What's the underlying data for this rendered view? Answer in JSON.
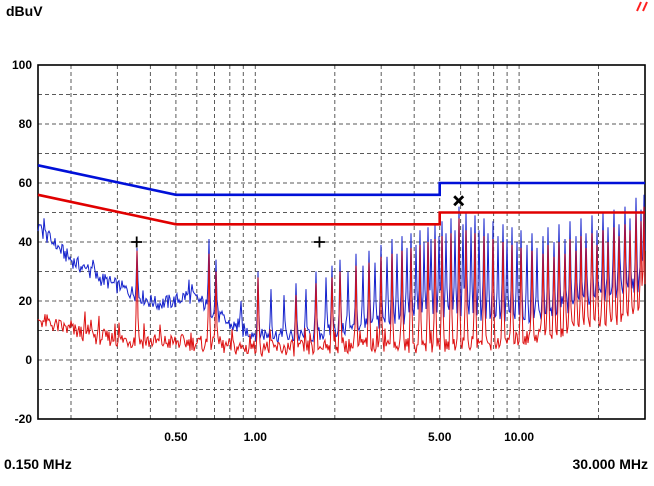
{
  "header": {
    "y_unit": "dBuV"
  },
  "footer": {
    "x_start": "0.150 MHz",
    "x_end": "30.000 MHz"
  },
  "decoration": {
    "logo_color": "#ff2020"
  },
  "chart_data": {
    "type": "line",
    "title": "",
    "xlabel": "MHz",
    "ylabel": "dBuV",
    "x_scale": "log",
    "x_range_mhz": [
      0.15,
      30
    ],
    "ylim": [
      -20,
      100
    ],
    "y_ticks": [
      100,
      80,
      60,
      40,
      20,
      0,
      -20
    ],
    "y_grid_step": 10,
    "grid_style": "dashed",
    "x_tick_labels": [
      {
        "value": 0.5,
        "label": "0.50"
      },
      {
        "value": 1.0,
        "label": "1.00"
      },
      {
        "value": 5.0,
        "label": "5.00"
      },
      {
        "value": 10.0,
        "label": "10.00"
      }
    ],
    "x_minor_grid": [
      0.2,
      0.3,
      0.4,
      0.5,
      0.6,
      0.7,
      0.8,
      0.9,
      1,
      2,
      3,
      4,
      5,
      6,
      7,
      8,
      9,
      10,
      20
    ],
    "limit_lines": [
      {
        "name": "quasi-peak-limit-line",
        "color": "#0010d8",
        "width": 2.6,
        "points": [
          [
            0.15,
            66
          ],
          [
            0.5,
            56
          ],
          [
            5,
            56
          ],
          [
            5,
            60
          ],
          [
            30,
            60
          ]
        ]
      },
      {
        "name": "average-limit-line",
        "color": "#e00000",
        "width": 2.6,
        "points": [
          [
            0.15,
            56
          ],
          [
            0.5,
            46
          ],
          [
            5,
            46
          ],
          [
            5,
            50
          ],
          [
            30,
            50
          ]
        ]
      }
    ],
    "markers": [
      {
        "symbol": "plus",
        "f_mhz": 0.355,
        "level_db": 40
      },
      {
        "symbol": "plus",
        "f_mhz": 1.75,
        "level_db": 40
      },
      {
        "symbol": "x",
        "f_mhz": 5.9,
        "level_db": 54
      }
    ],
    "traces": [
      {
        "name": "peak",
        "color": "#1522cc",
        "seed": 1,
        "noise_db": 2.6,
        "envelope": [
          [
            0.15,
            45
          ],
          [
            0.17,
            40
          ],
          [
            0.2,
            34
          ],
          [
            0.24,
            29
          ],
          [
            0.3,
            25
          ],
          [
            0.36,
            22
          ],
          [
            0.42,
            19
          ],
          [
            0.5,
            20
          ],
          [
            0.55,
            22
          ],
          [
            0.62,
            20
          ],
          [
            0.7,
            16
          ],
          [
            0.8,
            12
          ],
          [
            0.9,
            10
          ],
          [
            1.0,
            9
          ],
          [
            1.3,
            8
          ],
          [
            1.6,
            8
          ],
          [
            2.0,
            10
          ],
          [
            2.5,
            11
          ],
          [
            3.0,
            13
          ],
          [
            3.5,
            14
          ],
          [
            4.0,
            15
          ],
          [
            5.0,
            16
          ],
          [
            6.0,
            17
          ],
          [
            7.0,
            16
          ],
          [
            8.0,
            15
          ],
          [
            10,
            14
          ],
          [
            12,
            15
          ],
          [
            15,
            18
          ],
          [
            19,
            21
          ],
          [
            24,
            24
          ],
          [
            30,
            26
          ]
        ],
        "spikes": [
          [
            0.355,
            38
          ],
          [
            0.67,
            41
          ],
          [
            0.71,
            34
          ],
          [
            0.88,
            20
          ],
          [
            1.02,
            30
          ],
          [
            1.15,
            24
          ],
          [
            1.28,
            22
          ],
          [
            1.42,
            26
          ],
          [
            1.55,
            24
          ],
          [
            1.7,
            30
          ],
          [
            1.85,
            28
          ],
          [
            1.95,
            32
          ],
          [
            2.1,
            34
          ],
          [
            2.25,
            30
          ],
          [
            2.4,
            36
          ],
          [
            2.55,
            32
          ],
          [
            2.7,
            37
          ],
          [
            2.85,
            33
          ],
          [
            3.0,
            39
          ],
          [
            3.15,
            35
          ],
          [
            3.3,
            41
          ],
          [
            3.45,
            36
          ],
          [
            3.6,
            42
          ],
          [
            3.75,
            38
          ],
          [
            3.9,
            43
          ],
          [
            4.05,
            39
          ],
          [
            4.2,
            44
          ],
          [
            4.35,
            40
          ],
          [
            4.5,
            45
          ],
          [
            4.65,
            41
          ],
          [
            4.8,
            46
          ],
          [
            4.95,
            42
          ],
          [
            5.1,
            47
          ],
          [
            5.3,
            43
          ],
          [
            5.5,
            48
          ],
          [
            5.7,
            44
          ],
          [
            5.9,
            52
          ],
          [
            6.1,
            46
          ],
          [
            6.3,
            50
          ],
          [
            6.55,
            45
          ],
          [
            6.8,
            49
          ],
          [
            7.05,
            44
          ],
          [
            7.35,
            48
          ],
          [
            7.65,
            43
          ],
          [
            7.95,
            47
          ],
          [
            8.3,
            42
          ],
          [
            8.65,
            46
          ],
          [
            9.0,
            41
          ],
          [
            9.4,
            45
          ],
          [
            9.8,
            40
          ],
          [
            10.2,
            44
          ],
          [
            10.7,
            39
          ],
          [
            11.2,
            43
          ],
          [
            11.7,
            38
          ],
          [
            12.3,
            42
          ],
          [
            12.9,
            45
          ],
          [
            13.5,
            40
          ],
          [
            14.2,
            46
          ],
          [
            14.9,
            41
          ],
          [
            15.6,
            47
          ],
          [
            16.4,
            42
          ],
          [
            17.2,
            48
          ],
          [
            18.0,
            43
          ],
          [
            18.9,
            49
          ],
          [
            19.8,
            44
          ],
          [
            20.8,
            50
          ],
          [
            21.8,
            45
          ],
          [
            22.9,
            51
          ],
          [
            24.0,
            46
          ],
          [
            25.2,
            52
          ],
          [
            26.4,
            48
          ],
          [
            27.7,
            55
          ],
          [
            29.0,
            51
          ],
          [
            29.8,
            56
          ]
        ]
      },
      {
        "name": "average",
        "color": "#dd1111",
        "seed": 2,
        "noise_db": 2.8,
        "envelope": [
          [
            0.15,
            14
          ],
          [
            0.17,
            12
          ],
          [
            0.2,
            10
          ],
          [
            0.25,
            8
          ],
          [
            0.3,
            7
          ],
          [
            0.45,
            6
          ],
          [
            0.55,
            6
          ],
          [
            0.7,
            5
          ],
          [
            0.9,
            4
          ],
          [
            1.2,
            4
          ],
          [
            1.6,
            4
          ],
          [
            2.0,
            5
          ],
          [
            3.0,
            5
          ],
          [
            4.0,
            5
          ],
          [
            5.0,
            5
          ],
          [
            6.0,
            6
          ],
          [
            8.0,
            6
          ],
          [
            10,
            7
          ],
          [
            13,
            9
          ],
          [
            16,
            11
          ],
          [
            20,
            13
          ],
          [
            25,
            15
          ],
          [
            30,
            17
          ]
        ],
        "spikes": [
          [
            0.355,
            37
          ],
          [
            0.67,
            36
          ],
          [
            0.71,
            30
          ],
          [
            1.02,
            28
          ],
          [
            1.42,
            22
          ],
          [
            1.7,
            26
          ],
          [
            1.95,
            28
          ],
          [
            2.1,
            30
          ],
          [
            2.4,
            32
          ],
          [
            2.7,
            33
          ],
          [
            3.0,
            35
          ],
          [
            3.3,
            36
          ],
          [
            3.6,
            37
          ],
          [
            3.9,
            38
          ],
          [
            4.2,
            39
          ],
          [
            4.5,
            40
          ],
          [
            4.8,
            41
          ],
          [
            5.1,
            42
          ],
          [
            5.5,
            43
          ],
          [
            5.9,
            48
          ],
          [
            6.3,
            44
          ],
          [
            6.8,
            43
          ],
          [
            7.35,
            42
          ],
          [
            7.95,
            41
          ],
          [
            8.65,
            40
          ],
          [
            9.4,
            39
          ],
          [
            10.2,
            38
          ],
          [
            11.2,
            37
          ],
          [
            12.3,
            36
          ],
          [
            12.9,
            39
          ],
          [
            13.5,
            35
          ],
          [
            14.2,
            40
          ],
          [
            14.9,
            36
          ],
          [
            15.6,
            41
          ],
          [
            16.4,
            37
          ],
          [
            17.2,
            42
          ],
          [
            18.0,
            38
          ],
          [
            18.9,
            43
          ],
          [
            19.8,
            39
          ],
          [
            20.8,
            44
          ],
          [
            21.8,
            40
          ],
          [
            22.9,
            45
          ],
          [
            24.0,
            42
          ],
          [
            25.2,
            46
          ],
          [
            26.4,
            44
          ],
          [
            27.7,
            50
          ],
          [
            29.0,
            47
          ],
          [
            29.8,
            52
          ]
        ]
      }
    ]
  }
}
